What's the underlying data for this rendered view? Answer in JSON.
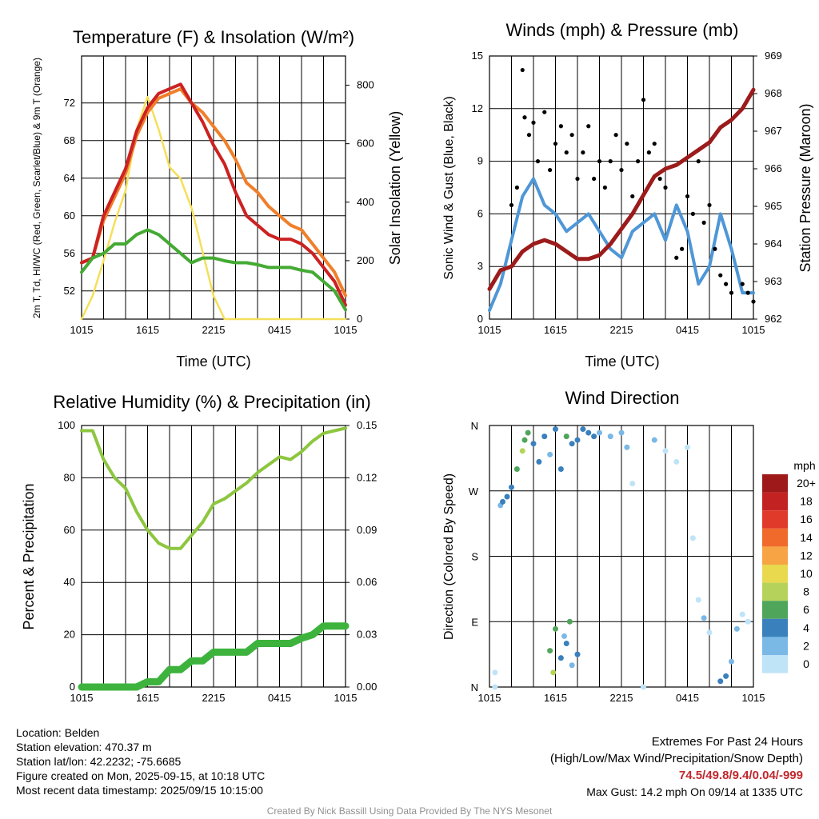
{
  "panels": {
    "temperature": {
      "title": "Temperature (F) & Insolation (W/m²)",
      "ylabel_left": "2m T, Td, HI/WC (Red, Green, Scarlet/Blue) & 9m T (Orange)",
      "ylabel_right": "Solar Insolation (Yellow)",
      "xlabel": "Time (UTC)"
    },
    "wind": {
      "title": "Winds (mph) & Pressure (mb)",
      "ylabel_left": "Sonic Wind & Gust (Blue, Black)",
      "ylabel_right": "Station Pressure (Maroon)",
      "xlabel": "Time (UTC)"
    },
    "humidity": {
      "title": "Relative Humidity (%) & Precipitation (in)",
      "ylabel_left": "Percent & Precipitation"
    },
    "direction": {
      "title": "Wind Direction",
      "ylabel_left": "Direction (Colored By Speed)",
      "colorbar_unit": "mph"
    }
  },
  "station": {
    "location": "Location: Belden",
    "elevation": "Station elevation: 470.37 m",
    "latlon": "Station lat/lon: 42.2232; -75.6685",
    "created": "Figure created on Mon, 2025-09-15, at 10:18 UTC",
    "recent": "Most recent data timestamp: 2025/09/15 10:15:00"
  },
  "extremes": {
    "heading": "Extremes For Past 24 Hours",
    "subheading": "(High/Low/Max Wind/Precipitation/Snow Depth)",
    "values": "74.5/49.8/9.4/0.04/-999",
    "max_gust": "Max Gust: 14.2 mph On 09/14 at 1335 UTC"
  },
  "credit": "Created By Nick Bassill Using Data Provided By The NYS Mesonet",
  "colors": {
    "temp_red": "#cc2222",
    "temp_green": "#44aa33",
    "temp_orange": "#f07f2a",
    "insolation_yellow": "#f5df5a",
    "wind_blue": "#4f97d6",
    "gust_black": "#000000",
    "pressure_maroon": "#9c1b1b",
    "rh_green": "#8dc63f",
    "precip_green": "#3db33d"
  },
  "chart_data": [
    {
      "type": "line",
      "title": "Temperature (F) & Insolation (W/m²)",
      "xlabel": "Time (UTC)",
      "xticks": [
        "1015",
        "1615",
        "2215",
        "0415",
        "1015"
      ],
      "x_hours": [
        0,
        1,
        2,
        3,
        4,
        5,
        6,
        7,
        8,
        9,
        10,
        11,
        12,
        13,
        14,
        15,
        16,
        17,
        18,
        19,
        20,
        21,
        22,
        23,
        24
      ],
      "ylim_left": [
        49,
        77
      ],
      "yticks_left": [
        52,
        56,
        60,
        64,
        68,
        72
      ],
      "ylim_right": [
        0,
        900
      ],
      "yticks_right": [
        0,
        200,
        400,
        600,
        800
      ],
      "series": [
        {
          "color": "#cc2222",
          "axis": "left",
          "values": [
            55,
            55.5,
            60,
            62.5,
            65,
            69,
            71.5,
            73,
            73.5,
            74,
            72,
            70,
            67.5,
            65.5,
            62.5,
            60,
            59,
            58,
            57.5,
            57.5,
            57,
            56,
            54.5,
            53,
            50.5
          ]
        },
        {
          "color": "#f07f2a",
          "axis": "left",
          "values": [
            55,
            55.5,
            59.5,
            62,
            64.5,
            68.5,
            71,
            72.5,
            73,
            73.5,
            72,
            71,
            69.5,
            68,
            66,
            63.5,
            62.5,
            61,
            60,
            59,
            58.5,
            57,
            55.5,
            54,
            51.5
          ]
        },
        {
          "color": "#44aa33",
          "axis": "left",
          "values": [
            54,
            55.5,
            56,
            57,
            57,
            58,
            58.5,
            58,
            57,
            56,
            55,
            55.5,
            55.5,
            55.2,
            55,
            55,
            54.8,
            54.5,
            54.5,
            54.5,
            54.2,
            54,
            53,
            52,
            50
          ]
        },
        {
          "color": "#f5df5a",
          "axis": "right",
          "values": [
            0,
            80,
            200,
            330,
            440,
            650,
            760,
            650,
            520,
            480,
            380,
            230,
            80,
            0,
            0,
            0,
            0,
            0,
            0,
            0,
            0,
            0,
            0,
            0,
            0
          ]
        }
      ]
    },
    {
      "type": "line",
      "title": "Winds (mph) & Pressure (mb)",
      "xlabel": "Time (UTC)",
      "xticks": [
        "1015",
        "1615",
        "2215",
        "0415",
        "1015"
      ],
      "x_hours": [
        0,
        1,
        2,
        3,
        4,
        5,
        6,
        7,
        8,
        9,
        10,
        11,
        12,
        13,
        14,
        15,
        16,
        17,
        18,
        19,
        20,
        21,
        22,
        23,
        24
      ],
      "ylim_left": [
        0,
        15
      ],
      "yticks_left": [
        0,
        3,
        6,
        9,
        12,
        15
      ],
      "ylim_right": [
        962,
        969
      ],
      "yticks_right": [
        962,
        963,
        964,
        965,
        966,
        967,
        968,
        969
      ],
      "series": [
        {
          "color": "#4f97d6",
          "axis": "left",
          "values": [
            0.5,
            2,
            4.5,
            7,
            8,
            6.5,
            6,
            5,
            5.5,
            6,
            5,
            4,
            3.5,
            5,
            5.5,
            6,
            4.5,
            6.5,
            5,
            2,
            3,
            6,
            4,
            1.5,
            1.5
          ]
        },
        {
          "color": "#9c1b1b",
          "axis": "right",
          "values": [
            962.8,
            963.3,
            963.4,
            963.8,
            964.0,
            964.1,
            964.0,
            963.8,
            963.6,
            963.6,
            963.7,
            964.0,
            964.4,
            964.8,
            965.3,
            965.8,
            966.0,
            966.1,
            966.3,
            966.5,
            966.7,
            967.1,
            967.3,
            967.6,
            968.1
          ]
        }
      ],
      "gusts": [
        {
          "x": 2.0,
          "y": 6.5
        },
        {
          "x": 2.5,
          "y": 7.5
        },
        {
          "x": 3.0,
          "y": 14.2
        },
        {
          "x": 3.2,
          "y": 11.5
        },
        {
          "x": 3.6,
          "y": 10.5
        },
        {
          "x": 4.0,
          "y": 11.2
        },
        {
          "x": 4.4,
          "y": 9.0
        },
        {
          "x": 5.0,
          "y": 11.8
        },
        {
          "x": 5.5,
          "y": 8.5
        },
        {
          "x": 6.0,
          "y": 10.0
        },
        {
          "x": 6.5,
          "y": 11.0
        },
        {
          "x": 7.0,
          "y": 9.5
        },
        {
          "x": 7.5,
          "y": 10.5
        },
        {
          "x": 8.0,
          "y": 8.0
        },
        {
          "x": 8.5,
          "y": 9.5
        },
        {
          "x": 9.0,
          "y": 11.0
        },
        {
          "x": 9.5,
          "y": 8.0
        },
        {
          "x": 10.0,
          "y": 9.0
        },
        {
          "x": 10.5,
          "y": 7.5
        },
        {
          "x": 11.0,
          "y": 9.0
        },
        {
          "x": 11.5,
          "y": 10.5
        },
        {
          "x": 12.0,
          "y": 8.5
        },
        {
          "x": 12.5,
          "y": 10.0
        },
        {
          "x": 13.0,
          "y": 7.0
        },
        {
          "x": 13.5,
          "y": 9.0
        },
        {
          "x": 14.0,
          "y": 12.5
        },
        {
          "x": 14.5,
          "y": 9.5
        },
        {
          "x": 15.0,
          "y": 10.0
        },
        {
          "x": 15.5,
          "y": 8.0
        },
        {
          "x": 16.0,
          "y": 7.5
        },
        {
          "x": 17.0,
          "y": 3.5
        },
        {
          "x": 17.5,
          "y": 4.0
        },
        {
          "x": 18.0,
          "y": 7.0
        },
        {
          "x": 18.5,
          "y": 6.0
        },
        {
          "x": 19.0,
          "y": 9.0
        },
        {
          "x": 19.5,
          "y": 5.5
        },
        {
          "x": 20.0,
          "y": 6.5
        },
        {
          "x": 20.5,
          "y": 4.0
        },
        {
          "x": 21.0,
          "y": 2.5
        },
        {
          "x": 21.5,
          "y": 2.0
        },
        {
          "x": 22.0,
          "y": 1.5
        },
        {
          "x": 23.0,
          "y": 2.0
        },
        {
          "x": 23.5,
          "y": 1.5
        },
        {
          "x": 24.0,
          "y": 1.0
        }
      ]
    },
    {
      "type": "line",
      "title": "Relative Humidity (%) & Precipitation (in)",
      "xticks": [
        "1015",
        "1615",
        "2215",
        "0415",
        "1015"
      ],
      "x_hours": [
        0,
        1,
        2,
        3,
        4,
        5,
        6,
        7,
        8,
        9,
        10,
        11,
        12,
        13,
        14,
        15,
        16,
        17,
        18,
        19,
        20,
        21,
        22,
        23,
        24
      ],
      "ylim_left": [
        0,
        100
      ],
      "yticks_left": [
        0,
        20,
        40,
        60,
        80,
        100
      ],
      "ylim_right": [
        0,
        0.15
      ],
      "yticks_right": [
        "0.00",
        "0.03",
        "0.06",
        "0.09",
        "0.12",
        "0.15"
      ],
      "series": [
        {
          "color": "#8dc63f",
          "axis": "left",
          "values": [
            98,
            98,
            87,
            80,
            76,
            67,
            60,
            55,
            53,
            53,
            58,
            63,
            70,
            72,
            75,
            78,
            82,
            85,
            88,
            87,
            90,
            94,
            97,
            98,
            99
          ]
        },
        {
          "color": "#3db33d",
          "axis": "right",
          "values": [
            0,
            0,
            0,
            0,
            0,
            0,
            0.003,
            0.003,
            0.01,
            0.01,
            0.015,
            0.015,
            0.02,
            0.02,
            0.02,
            0.02,
            0.025,
            0.025,
            0.025,
            0.025,
            0.028,
            0.03,
            0.035,
            0.035,
            0.035
          ]
        }
      ]
    },
    {
      "type": "scatter",
      "title": "Wind Direction",
      "xticks": [
        "1015",
        "1615",
        "2215",
        "0415",
        "1015"
      ],
      "yticks": [
        "N",
        "E",
        "S",
        "W",
        "N"
      ],
      "ylim": [
        0,
        360
      ],
      "colorbar": {
        "unit": "mph",
        "labels": [
          "20+",
          "18",
          "16",
          "14",
          "12",
          "10",
          "8",
          "6",
          "4",
          "2",
          "0"
        ],
        "colors": [
          "#9e1a1a",
          "#c32222",
          "#e03a2a",
          "#ef6a2b",
          "#f7a444",
          "#e8d94f",
          "#b5d35a",
          "#4fa55a",
          "#3a80bd",
          "#7ab8e6",
          "#bfe3f7"
        ]
      },
      "points": [
        {
          "x": 0.5,
          "y": 20,
          "s": 1
        },
        {
          "x": 0.5,
          "y": 0,
          "s": 1
        },
        {
          "x": 1.0,
          "y": 250,
          "s": 3
        },
        {
          "x": 1.2,
          "y": 255,
          "s": 4
        },
        {
          "x": 1.6,
          "y": 262,
          "s": 4
        },
        {
          "x": 2.0,
          "y": 275,
          "s": 5
        },
        {
          "x": 2.5,
          "y": 300,
          "s": 7
        },
        {
          "x": 3.0,
          "y": 325,
          "s": 8
        },
        {
          "x": 3.2,
          "y": 340,
          "s": 6
        },
        {
          "x": 3.5,
          "y": 350,
          "s": 6
        },
        {
          "x": 4.0,
          "y": 335,
          "s": 5
        },
        {
          "x": 4.5,
          "y": 310,
          "s": 4
        },
        {
          "x": 5.0,
          "y": 345,
          "s": 5
        },
        {
          "x": 5.5,
          "y": 320,
          "s": 3
        },
        {
          "x": 6.0,
          "y": 355,
          "s": 4
        },
        {
          "x": 6.5,
          "y": 300,
          "s": 4
        },
        {
          "x": 7.0,
          "y": 345,
          "s": 6
        },
        {
          "x": 7.5,
          "y": 335,
          "s": 5
        },
        {
          "x": 8.0,
          "y": 340,
          "s": 4
        },
        {
          "x": 8.5,
          "y": 355,
          "s": 5
        },
        {
          "x": 9.0,
          "y": 350,
          "s": 4
        },
        {
          "x": 9.5,
          "y": 345,
          "s": 4
        },
        {
          "x": 10.0,
          "y": 350,
          "s": 3
        },
        {
          "x": 11.0,
          "y": 345,
          "s": 2
        },
        {
          "x": 12.0,
          "y": 350,
          "s": 3
        },
        {
          "x": 12.5,
          "y": 330,
          "s": 2
        },
        {
          "x": 13.0,
          "y": 280,
          "s": 1
        },
        {
          "x": 14.0,
          "y": 0,
          "s": 1
        },
        {
          "x": 15.0,
          "y": 340,
          "s": 2
        },
        {
          "x": 16.0,
          "y": 325,
          "s": 1
        },
        {
          "x": 17.0,
          "y": 310,
          "s": 1
        },
        {
          "x": 18.0,
          "y": 330,
          "s": 1
        },
        {
          "x": 18.5,
          "y": 205,
          "s": 1
        },
        {
          "x": 19.0,
          "y": 120,
          "s": 1
        },
        {
          "x": 19.5,
          "y": 95,
          "s": 2
        },
        {
          "x": 20.0,
          "y": 75,
          "s": 1
        },
        {
          "x": 21.0,
          "y": 8,
          "s": 5
        },
        {
          "x": 21.5,
          "y": 15,
          "s": 4
        },
        {
          "x": 22.0,
          "y": 35,
          "s": 3
        },
        {
          "x": 22.5,
          "y": 80,
          "s": 2
        },
        {
          "x": 23.0,
          "y": 100,
          "s": 1
        },
        {
          "x": 23.5,
          "y": 90,
          "s": 1
        },
        {
          "x": 5.5,
          "y": 50,
          "s": 7
        },
        {
          "x": 6.0,
          "y": 80,
          "s": 6
        },
        {
          "x": 6.5,
          "y": 40,
          "s": 4
        },
        {
          "x": 7.0,
          "y": 60,
          "s": 5
        },
        {
          "x": 7.5,
          "y": 30,
          "s": 3
        },
        {
          "x": 5.8,
          "y": 20,
          "s": 8
        },
        {
          "x": 6.8,
          "y": 70,
          "s": 2
        },
        {
          "x": 7.3,
          "y": 90,
          "s": 6
        },
        {
          "x": 8.0,
          "y": 45,
          "s": 4
        }
      ]
    }
  ]
}
